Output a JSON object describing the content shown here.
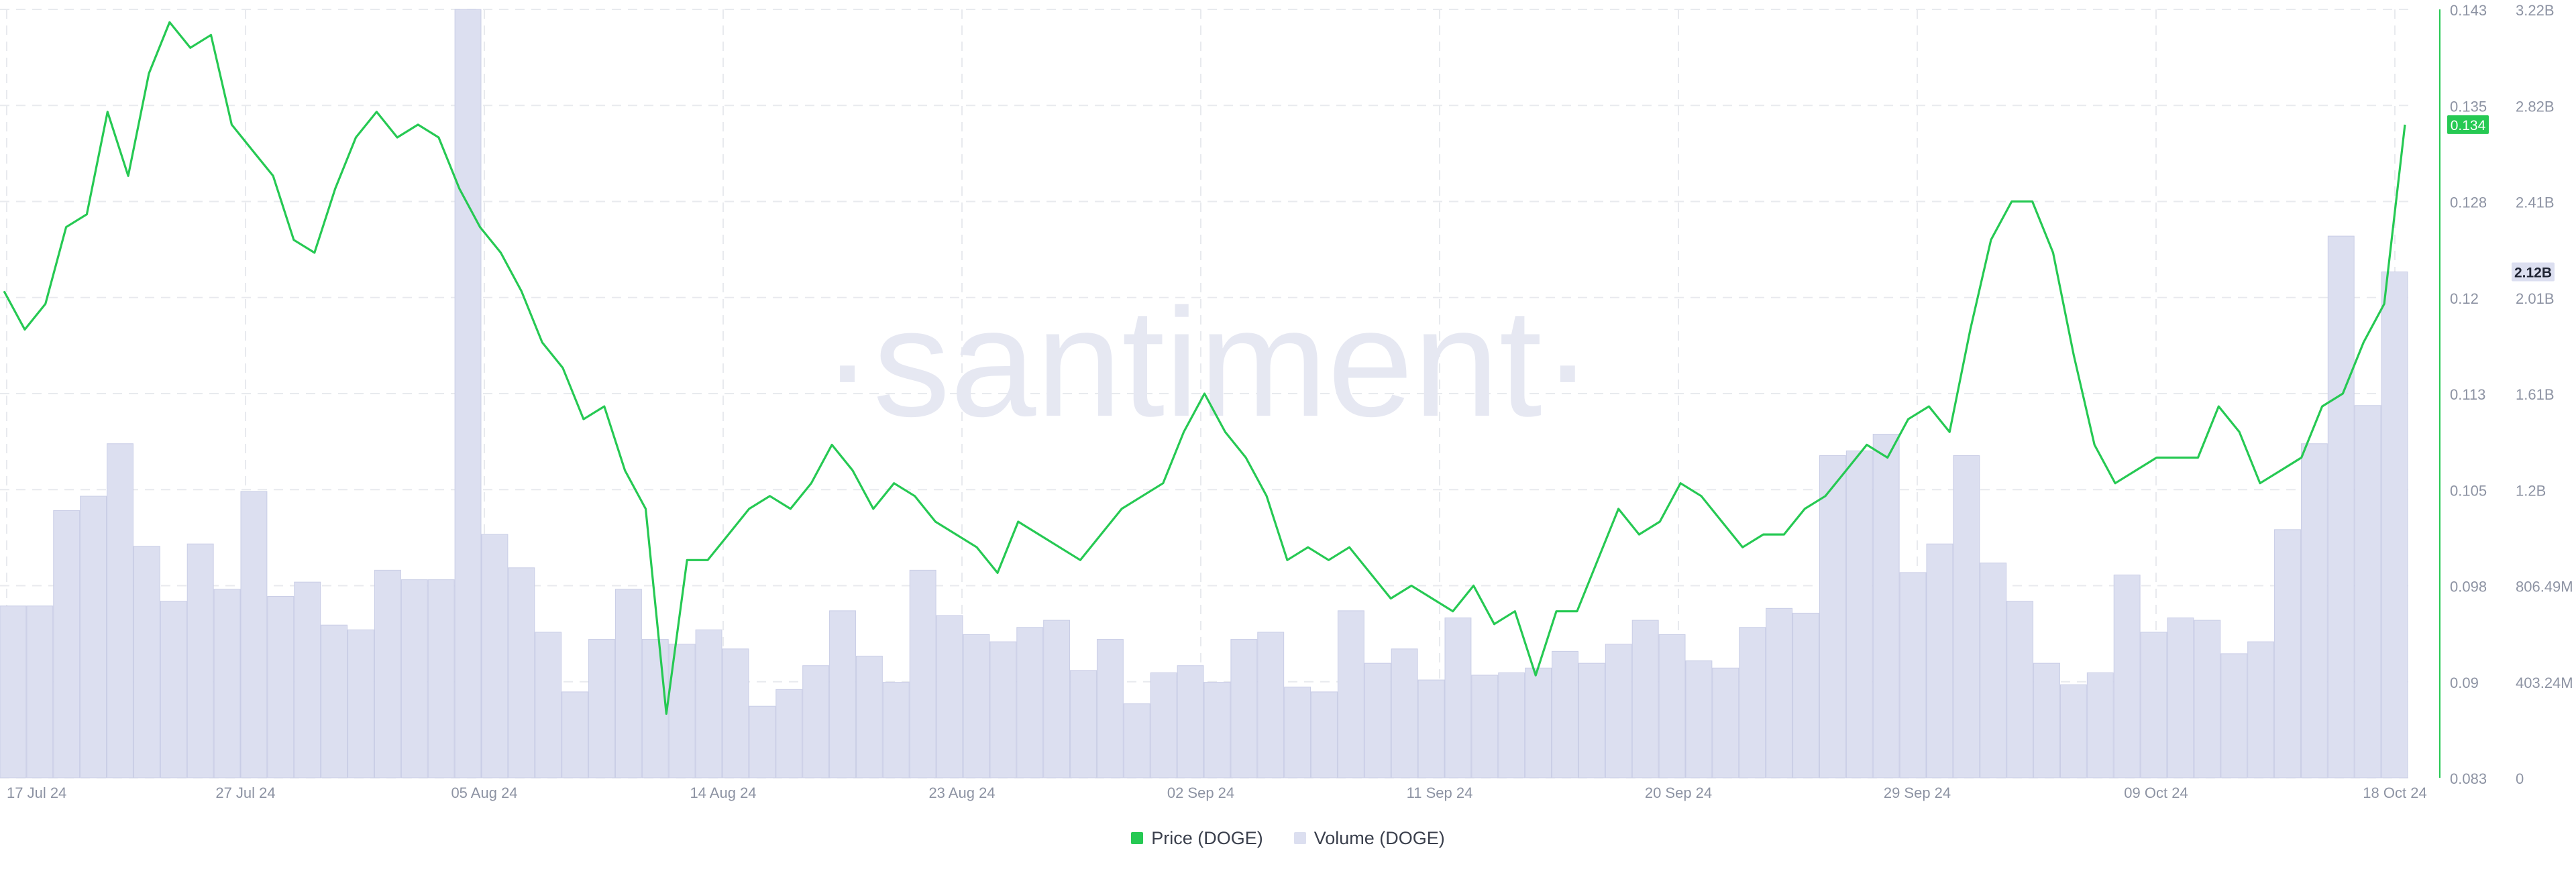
{
  "watermark": "·santiment·",
  "legend": {
    "price_label": "Price (DOGE)",
    "volume_label": "Volume (DOGE)"
  },
  "colors": {
    "price": "#26c953",
    "volume": "#dcdff0",
    "volume_stroke": "#c9cde6",
    "grid": "#e8eaee",
    "axis_text": "#8d93a3",
    "watermark": "#e6e8f2"
  },
  "price_badge": "0.134",
  "volume_badge": "2.12B",
  "chart_data": {
    "type": "line",
    "title": "",
    "x_ticks": [
      "17 Jul 24",
      "27 Jul 24",
      "05 Aug 24",
      "14 Aug 24",
      "23 Aug 24",
      "02 Sep 24",
      "11 Sep 24",
      "20 Sep 24",
      "29 Sep 24",
      "09 Oct 24",
      "18 Oct 24"
    ],
    "price_axis": {
      "ticks": [
        "0.143",
        "0.135",
        "0.128",
        "0.12",
        "0.113",
        "0.105",
        "0.098",
        "0.09",
        "0.083"
      ],
      "min": 0.083,
      "max": 0.143
    },
    "volume_axis": {
      "ticks": [
        "3.22B",
        "2.82B",
        "2.41B",
        "2.01B",
        "1.61B",
        "1.2B",
        "806.49M",
        "403.24M",
        "0"
      ],
      "min": 0,
      "max": 3.22
    },
    "series": [
      {
        "name": "Price (DOGE)",
        "axis": "left",
        "values": [
          0.121,
          0.118,
          0.12,
          0.126,
          0.127,
          0.135,
          0.13,
          0.138,
          0.142,
          0.14,
          0.141,
          0.134,
          0.132,
          0.13,
          0.125,
          0.124,
          0.129,
          0.133,
          0.135,
          0.133,
          0.134,
          0.133,
          0.129,
          0.126,
          0.124,
          0.121,
          0.117,
          0.115,
          0.111,
          0.112,
          0.107,
          0.104,
          0.088,
          0.1,
          0.1,
          0.102,
          0.104,
          0.105,
          0.104,
          0.106,
          0.109,
          0.107,
          0.104,
          0.106,
          0.105,
          0.103,
          0.102,
          0.101,
          0.099,
          0.103,
          0.102,
          0.101,
          0.1,
          0.102,
          0.104,
          0.105,
          0.106,
          0.11,
          0.113,
          0.11,
          0.108,
          0.105,
          0.1,
          0.101,
          0.1,
          0.101,
          0.099,
          0.097,
          0.098,
          0.097,
          0.096,
          0.098,
          0.095,
          0.096,
          0.091,
          0.096,
          0.096,
          0.1,
          0.104,
          0.102,
          0.103,
          0.106,
          0.105,
          0.103,
          0.101,
          0.102,
          0.102,
          0.104,
          0.105,
          0.107,
          0.109,
          0.108,
          0.111,
          0.112,
          0.11,
          0.118,
          0.125,
          0.128,
          0.128,
          0.124,
          0.116,
          0.109,
          0.106,
          0.107,
          0.108,
          0.108,
          0.108,
          0.112,
          0.11,
          0.106,
          0.107,
          0.108,
          0.112,
          0.113,
          0.117,
          0.12,
          0.134
        ]
      },
      {
        "name": "Volume (DOGE)",
        "axis": "right",
        "values": [
          0.72,
          0.72,
          1.12,
          1.18,
          1.4,
          0.97,
          0.74,
          0.98,
          0.79,
          1.2,
          0.76,
          0.82,
          0.64,
          0.62,
          0.87,
          0.83,
          0.83,
          3.22,
          1.02,
          0.88,
          0.61,
          0.36,
          0.58,
          0.79,
          0.58,
          0.56,
          0.62,
          0.54,
          0.3,
          0.37,
          0.47,
          0.7,
          0.51,
          0.4,
          0.87,
          0.68,
          0.6,
          0.57,
          0.63,
          0.66,
          0.45,
          0.58,
          0.31,
          0.44,
          0.47,
          0.4,
          0.58,
          0.61,
          0.38,
          0.36,
          0.7,
          0.48,
          0.54,
          0.41,
          0.67,
          0.43,
          0.44,
          0.46,
          0.53,
          0.48,
          0.56,
          0.66,
          0.6,
          0.49,
          0.46,
          0.63,
          0.71,
          0.69,
          1.35,
          1.37,
          1.44,
          0.86,
          0.98,
          1.35,
          0.9,
          0.74,
          0.48,
          0.39,
          0.44,
          0.85,
          0.61,
          0.67,
          0.66,
          0.52,
          0.57,
          1.04,
          1.4,
          2.27,
          1.56,
          2.12
        ]
      }
    ],
    "grid": true,
    "legend_position": "bottom-center"
  }
}
